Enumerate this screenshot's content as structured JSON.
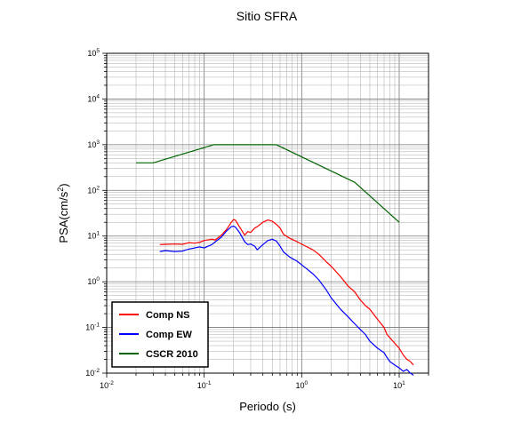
{
  "chart_data": {
    "type": "line",
    "title": "Sitio SFRA",
    "xlabel": "Periodo (s)",
    "ylabel_main": "PSA(cm/s",
    "ylabel_sup": "2",
    "ylabel_close": ")",
    "x_scale": "log",
    "y_scale": "log",
    "xlim": [
      0.01,
      20
    ],
    "ylim": [
      0.01,
      100000
    ],
    "grid": true,
    "legend_position": "bottom-left",
    "x_ticks": [
      {
        "base": "10",
        "exp": "-2",
        "value": 0.01
      },
      {
        "base": "10",
        "exp": "-1",
        "value": 0.1
      },
      {
        "base": "10",
        "exp": "0",
        "value": 1
      },
      {
        "base": "10",
        "exp": "1",
        "value": 10
      }
    ],
    "y_ticks": [
      {
        "base": "10",
        "exp": "-2",
        "value": 0.01
      },
      {
        "base": "10",
        "exp": "-1",
        "value": 0.1
      },
      {
        "base": "10",
        "exp": "0",
        "value": 1
      },
      {
        "base": "10",
        "exp": "1",
        "value": 10
      },
      {
        "base": "10",
        "exp": "2",
        "value": 100
      },
      {
        "base": "10",
        "exp": "3",
        "value": 1000
      },
      {
        "base": "10",
        "exp": "4",
        "value": 10000
      },
      {
        "base": "10",
        "exp": "5",
        "value": 100000
      }
    ],
    "series": [
      {
        "name": "Comp NS",
        "color": "#ff0000",
        "x": [
          0.035,
          0.04,
          0.05,
          0.06,
          0.07,
          0.08,
          0.09,
          0.1,
          0.12,
          0.13,
          0.15,
          0.17,
          0.19,
          0.2,
          0.21,
          0.23,
          0.26,
          0.28,
          0.3,
          0.33,
          0.35,
          0.4,
          0.45,
          0.5,
          0.55,
          0.6,
          0.65,
          0.75,
          0.9,
          1.1,
          1.3,
          1.5,
          1.8,
          2.0,
          2.5,
          3.0,
          3.5,
          4.0,
          4.5,
          5.0,
          6.0,
          7.0,
          7.5,
          8.0,
          9.0,
          10.0,
          11.0,
          12.0,
          13.0,
          14.0
        ],
        "y": [
          6.5,
          6.6,
          6.7,
          6.6,
          7.2,
          7.0,
          7.3,
          8.0,
          8.5,
          8.2,
          10.5,
          14.0,
          20.0,
          23.0,
          22.0,
          16.0,
          10.5,
          12.5,
          12.0,
          15.0,
          16.0,
          20.0,
          22.5,
          21.0,
          18.0,
          15.0,
          11.0,
          9.0,
          7.5,
          6.0,
          5.0,
          4.0,
          2.7,
          2.2,
          1.3,
          0.8,
          0.6,
          0.4,
          0.3,
          0.25,
          0.15,
          0.1,
          0.07,
          0.06,
          0.045,
          0.035,
          0.025,
          0.02,
          0.018,
          0.015
        ]
      },
      {
        "name": "Comp EW",
        "color": "#0000ff",
        "x": [
          0.035,
          0.04,
          0.05,
          0.06,
          0.07,
          0.08,
          0.09,
          0.1,
          0.12,
          0.13,
          0.15,
          0.17,
          0.19,
          0.2,
          0.21,
          0.23,
          0.26,
          0.28,
          0.3,
          0.33,
          0.35,
          0.4,
          0.45,
          0.5,
          0.55,
          0.6,
          0.65,
          0.75,
          0.9,
          1.1,
          1.3,
          1.5,
          1.8,
          2.0,
          2.5,
          3.0,
          3.5,
          4.0,
          4.5,
          5.0,
          6.0,
          7.0,
          7.5,
          8.0,
          9.0,
          10.0,
          11.0,
          12.0,
          13.0,
          14.0
        ],
        "y": [
          4.6,
          4.8,
          4.6,
          4.7,
          5.2,
          5.5,
          5.8,
          5.5,
          6.5,
          7.5,
          9.5,
          13.0,
          16.0,
          16.5,
          15.5,
          12.0,
          7.5,
          6.5,
          6.7,
          6.0,
          5.0,
          6.5,
          8.0,
          8.5,
          7.8,
          6.0,
          4.5,
          3.5,
          2.8,
          2.0,
          1.5,
          1.1,
          0.65,
          0.45,
          0.25,
          0.17,
          0.12,
          0.09,
          0.07,
          0.05,
          0.035,
          0.028,
          0.022,
          0.018,
          0.015,
          0.013,
          0.011,
          0.012,
          0.01,
          0.009
        ]
      },
      {
        "name": "CSCR 2010",
        "color": "#006400",
        "x": [
          0.02,
          0.03,
          0.125,
          0.55,
          3.5,
          10.0
        ],
        "y": [
          400,
          400,
          1000,
          1000,
          150,
          20
        ]
      }
    ]
  }
}
